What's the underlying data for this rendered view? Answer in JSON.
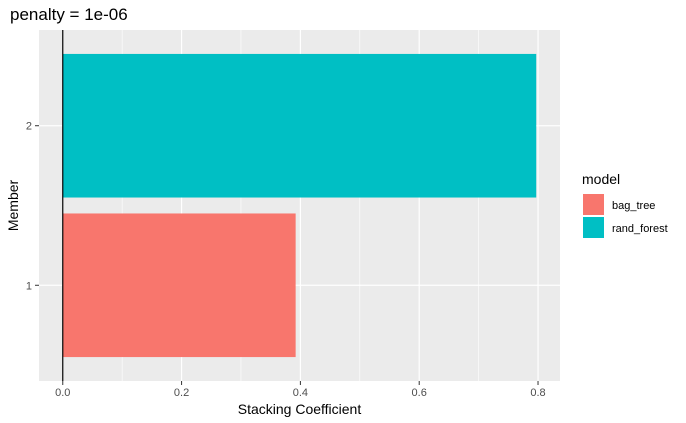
{
  "chart_data": {
    "type": "bar",
    "orientation": "horizontal",
    "title": "penalty = 1e-06",
    "xlabel": "Stacking Coefficient",
    "ylabel": "Member",
    "categories": [
      "1",
      "2"
    ],
    "values": [
      0.392,
      0.797
    ],
    "bar_models": [
      "bag_tree",
      "rand_forest"
    ],
    "xlim": [
      -0.04,
      0.837
    ],
    "xticks": [
      0.0,
      0.2,
      0.4,
      0.6,
      0.8
    ],
    "xtick_labels": [
      "0.0",
      "0.2",
      "0.4",
      "0.6",
      "0.8"
    ],
    "vline_at": 0,
    "grid": true,
    "legend": {
      "title": "model",
      "position": "right",
      "entries": [
        {
          "label": "bag_tree",
          "color": "#F8766D"
        },
        {
          "label": "rand_forest",
          "color": "#00BFC4"
        }
      ]
    },
    "colors": {
      "panel_background": "#EBEBEB",
      "grid": "#FFFFFF",
      "bag_tree": "#F8766D",
      "rand_forest": "#00BFC4"
    }
  }
}
